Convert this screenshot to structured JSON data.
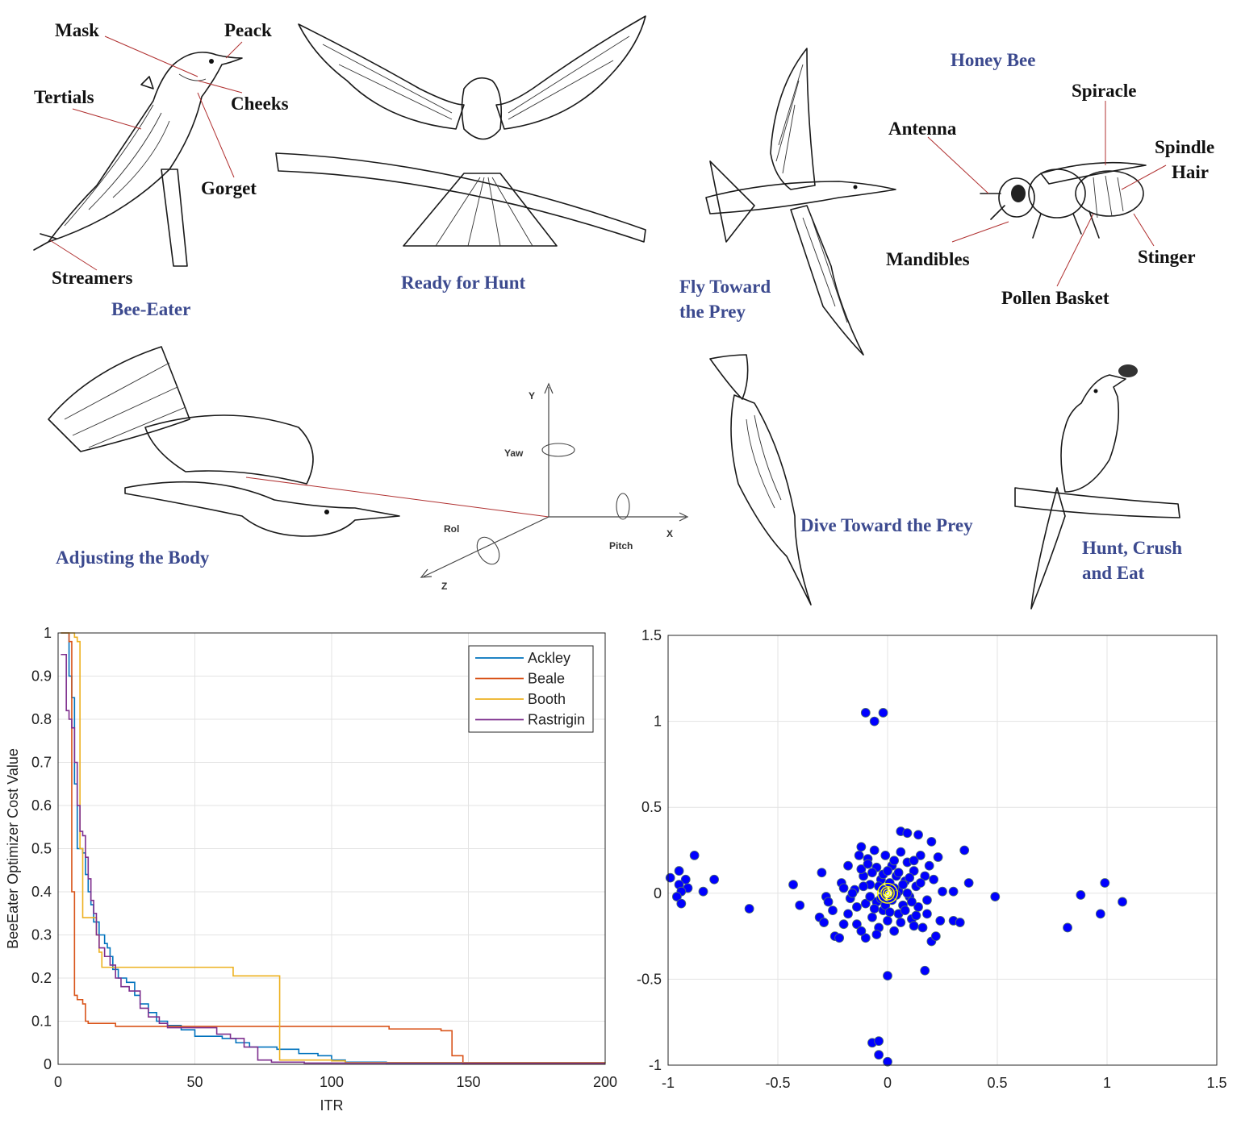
{
  "illustration": {
    "bee_eater_parts": {
      "mask": "Mask",
      "peack": "Peack",
      "tertials": "Tertials",
      "cheeks": "Cheeks",
      "gorget": "Gorget",
      "streamers": "Streamers"
    },
    "bee_parts": {
      "title": "Honey Bee",
      "spiracle": "Spiracle",
      "antenna": "Antenna",
      "spindle": "Spindle",
      "hair": "Hair",
      "mandibles": "Mandibles",
      "stinger": "Stinger",
      "pollen_basket": "Pollen Basket"
    },
    "stages": {
      "bee_eater": "Bee-Eater",
      "ready": "Ready for Hunt",
      "fly_1": "Fly Toward",
      "fly_2": "the Prey",
      "adjust": "Adjusting the Body",
      "dive": "Dive Toward the Prey",
      "hunt_1": "Hunt, Crush",
      "hunt_2": "and Eat"
    },
    "axes3d": {
      "y": "Y",
      "x": "X",
      "z": "Z",
      "yaw": "Yaw",
      "roll": "Rol",
      "pitch": "Pitch"
    },
    "colors": {
      "label_blue": "#3c4a8f",
      "leader_red": "#b03030"
    }
  },
  "chart_data": [
    {
      "type": "line",
      "xlabel": "ITR",
      "ylabel": "BeeEater Optimizer Cost Value",
      "xlim": [
        0,
        200
      ],
      "ylim": [
        0,
        1
      ],
      "xticks": [
        0,
        50,
        100,
        150,
        200
      ],
      "yticks": [
        0,
        0.1,
        0.2,
        0.3,
        0.4,
        0.5,
        0.6,
        0.7,
        0.8,
        0.9,
        1
      ],
      "grid": true,
      "legend_position": "top-right",
      "series": [
        {
          "name": "Ackley",
          "color": "#0072bd",
          "points": [
            [
              1,
              1
            ],
            [
              4,
              0.9
            ],
            [
              5,
              0.85
            ],
            [
              6,
              0.65
            ],
            [
              7,
              0.5
            ],
            [
              9,
              0.49
            ],
            [
              10,
              0.44
            ],
            [
              11,
              0.4
            ],
            [
              12,
              0.37
            ],
            [
              13,
              0.33
            ],
            [
              15,
              0.3
            ],
            [
              17,
              0.28
            ],
            [
              18,
              0.27
            ],
            [
              19,
              0.25
            ],
            [
              20,
              0.22
            ],
            [
              22,
              0.2
            ],
            [
              25,
              0.19
            ],
            [
              28,
              0.16
            ],
            [
              30,
              0.14
            ],
            [
              33,
              0.12
            ],
            [
              36,
              0.1
            ],
            [
              40,
              0.09
            ],
            [
              45,
              0.08
            ],
            [
              50,
              0.065
            ],
            [
              60,
              0.06
            ],
            [
              65,
              0.05
            ],
            [
              70,
              0.04
            ],
            [
              80,
              0.035
            ],
            [
              88,
              0.025
            ],
            [
              95,
              0.02
            ],
            [
              100,
              0.01
            ],
            [
              105,
              0.005
            ],
            [
              120,
              0.003
            ],
            [
              150,
              0.002
            ],
            [
              200,
              0.002
            ]
          ]
        },
        {
          "name": "Beale",
          "color": "#d95319",
          "points": [
            [
              1,
              1
            ],
            [
              4,
              0.98
            ],
            [
              5,
              0.4
            ],
            [
              6,
              0.16
            ],
            [
              7,
              0.15
            ],
            [
              9,
              0.14
            ],
            [
              10,
              0.1
            ],
            [
              11,
              0.095
            ],
            [
              20,
              0.095
            ],
            [
              21,
              0.088
            ],
            [
              120,
              0.088
            ],
            [
              121,
              0.082
            ],
            [
              140,
              0.078
            ],
            [
              143,
              0.078
            ],
            [
              144,
              0.02
            ],
            [
              147,
              0.02
            ],
            [
              148,
              0.002
            ],
            [
              200,
              0.002
            ]
          ]
        },
        {
          "name": "Booth",
          "color": "#edb120",
          "points": [
            [
              1,
              1
            ],
            [
              5,
              1
            ],
            [
              6,
              0.99
            ],
            [
              7,
              0.98
            ],
            [
              8,
              0.5
            ],
            [
              9,
              0.34
            ],
            [
              13,
              0.34
            ],
            [
              14,
              0.3
            ],
            [
              15,
              0.26
            ],
            [
              16,
              0.225
            ],
            [
              63,
              0.225
            ],
            [
              64,
              0.205
            ],
            [
              80,
              0.205
            ],
            [
              81,
              0.01
            ],
            [
              100,
              0.008
            ],
            [
              105,
              0.004
            ],
            [
              200,
              0.003
            ]
          ]
        },
        {
          "name": "Rastrigin",
          "color": "#7e2f8e",
          "points": [
            [
              1,
              0.95
            ],
            [
              3,
              0.82
            ],
            [
              4,
              0.8
            ],
            [
              5,
              0.78
            ],
            [
              6,
              0.7
            ],
            [
              7,
              0.6
            ],
            [
              8,
              0.54
            ],
            [
              9,
              0.53
            ],
            [
              10,
              0.48
            ],
            [
              11,
              0.43
            ],
            [
              12,
              0.38
            ],
            [
              13,
              0.35
            ],
            [
              14,
              0.3
            ],
            [
              15,
              0.27
            ],
            [
              17,
              0.25
            ],
            [
              19,
              0.23
            ],
            [
              21,
              0.2
            ],
            [
              23,
              0.18
            ],
            [
              26,
              0.17
            ],
            [
              30,
              0.13
            ],
            [
              33,
              0.11
            ],
            [
              37,
              0.095
            ],
            [
              40,
              0.085
            ],
            [
              50,
              0.085
            ],
            [
              57,
              0.085
            ],
            [
              58,
              0.07
            ],
            [
              63,
              0.06
            ],
            [
              68,
              0.04
            ],
            [
              72,
              0.04
            ],
            [
              73,
              0.01
            ],
            [
              78,
              0.005
            ],
            [
              90,
              0.003
            ],
            [
              200,
              0.003
            ]
          ]
        }
      ]
    },
    {
      "type": "scatter",
      "xlim": [
        -1,
        1.5
      ],
      "ylim": [
        -1,
        1.5
      ],
      "xticks": [
        -1,
        -0.5,
        0,
        0.5,
        1,
        1.5
      ],
      "yticks": [
        -1,
        -0.5,
        0,
        0.5,
        1,
        1.5
      ],
      "grid": true,
      "marker_color": "#0000ff",
      "marker_edge": "#4f6f70",
      "ring_color": "#ffff00",
      "rings": [
        0.01,
        0.02,
        0.03,
        0.045
      ],
      "points": [
        [
          -0.1,
          1.05
        ],
        [
          -0.02,
          1.05
        ],
        [
          -0.06,
          1.0
        ],
        [
          -0.99,
          0.09
        ],
        [
          -0.95,
          0.13
        ],
        [
          -0.92,
          0.08
        ],
        [
          -0.88,
          0.22
        ],
        [
          -0.95,
          0.05
        ],
        [
          -0.91,
          0.03
        ],
        [
          -0.94,
          0.01
        ],
        [
          -0.96,
          -0.02
        ],
        [
          -0.94,
          -0.06
        ],
        [
          -0.84,
          0.01
        ],
        [
          -0.79,
          0.08
        ],
        [
          -0.63,
          -0.09
        ],
        [
          -0.43,
          0.05
        ],
        [
          -0.4,
          -0.07
        ],
        [
          -0.3,
          0.12
        ],
        [
          -0.28,
          -0.02
        ],
        [
          -0.31,
          -0.14
        ],
        [
          -0.29,
          -0.17
        ],
        [
          -0.27,
          -0.05
        ],
        [
          -0.25,
          -0.1
        ],
        [
          -0.24,
          -0.25
        ],
        [
          -0.22,
          -0.26
        ],
        [
          -0.21,
          0.06
        ],
        [
          -0.2,
          -0.18
        ],
        [
          -0.18,
          0.16
        ],
        [
          -0.17,
          -0.03
        ],
        [
          -0.15,
          0.02
        ],
        [
          -0.13,
          0.22
        ],
        [
          -0.12,
          0.27
        ],
        [
          -0.11,
          0.1
        ],
        [
          -0.1,
          -0.06
        ],
        [
          -0.1,
          -0.26
        ],
        [
          -0.09,
          0.2
        ],
        [
          -0.08,
          0.05
        ],
        [
          -0.07,
          -0.14
        ],
        [
          -0.06,
          0.25
        ],
        [
          -0.05,
          0.15
        ],
        [
          -0.05,
          -0.05
        ],
        [
          -0.04,
          -0.2
        ],
        [
          -0.03,
          0.08
        ],
        [
          -0.02,
          -0.1
        ],
        [
          -0.02,
          0.02
        ],
        [
          -0.01,
          0.22
        ],
        [
          0.0,
          -0.16
        ],
        [
          0.01,
          0.06
        ],
        [
          0.02,
          -0.04
        ],
        [
          0.02,
          0.16
        ],
        [
          0.03,
          -0.22
        ],
        [
          0.04,
          0.1
        ],
        [
          0.05,
          0.01
        ],
        [
          0.05,
          -0.12
        ],
        [
          0.06,
          0.24
        ],
        [
          0.07,
          -0.07
        ],
        [
          0.08,
          0.07
        ],
        [
          0.09,
          0.18
        ],
        [
          0.1,
          -0.02
        ],
        [
          0.11,
          -0.15
        ],
        [
          0.12,
          0.13
        ],
        [
          0.13,
          0.04
        ],
        [
          0.14,
          -0.08
        ],
        [
          0.15,
          0.22
        ],
        [
          0.16,
          -0.2
        ],
        [
          0.17,
          0.1
        ],
        [
          0.18,
          -0.04
        ],
        [
          0.19,
          0.16
        ],
        [
          0.2,
          -0.28
        ],
        [
          0.21,
          0.08
        ],
        [
          0.22,
          -0.25
        ],
        [
          0.23,
          0.21
        ],
        [
          0.24,
          -0.16
        ],
        [
          0.25,
          0.01
        ],
        [
          0.06,
          0.36
        ],
        [
          0.09,
          0.35
        ],
        [
          0.14,
          0.34
        ],
        [
          0.2,
          0.3
        ],
        [
          0.17,
          -0.45
        ],
        [
          0.0,
          -0.48
        ],
        [
          0.3,
          -0.16
        ],
        [
          0.3,
          0.01
        ],
        [
          0.33,
          -0.17
        ],
        [
          0.35,
          0.25
        ],
        [
          0.37,
          0.06
        ],
        [
          0.49,
          -0.02
        ],
        [
          -0.07,
          -0.87
        ],
        [
          -0.04,
          -0.86
        ],
        [
          -0.04,
          -0.94
        ],
        [
          0.0,
          -0.98
        ],
        [
          0.82,
          -0.2
        ],
        [
          0.88,
          -0.01
        ],
        [
          0.97,
          -0.12
        ],
        [
          0.99,
          0.06
        ],
        [
          1.07,
          -0.05
        ],
        [
          -0.16,
          0.0
        ],
        [
          -0.14,
          -0.08
        ],
        [
          -0.12,
          0.14
        ],
        [
          -0.11,
          0.04
        ],
        [
          -0.08,
          -0.02
        ],
        [
          -0.07,
          0.12
        ],
        [
          -0.06,
          -0.09
        ],
        [
          -0.04,
          0.04
        ],
        [
          -0.03,
          -0.03
        ],
        [
          -0.02,
          0.11
        ],
        [
          -0.01,
          -0.07
        ],
        [
          0.0,
          0.13
        ],
        [
          0.01,
          -0.11
        ],
        [
          0.03,
          0.03
        ],
        [
          0.04,
          -0.01
        ],
        [
          0.05,
          0.12
        ],
        [
          0.06,
          -0.17
        ],
        [
          0.07,
          0.05
        ],
        [
          0.08,
          -0.1
        ],
        [
          0.09,
          0.0
        ],
        [
          0.1,
          0.09
        ],
        [
          0.11,
          -0.05
        ],
        [
          0.12,
          0.19
        ],
        [
          0.13,
          -0.13
        ],
        [
          -0.14,
          -0.18
        ],
        [
          -0.18,
          -0.12
        ],
        [
          -0.2,
          0.03
        ],
        [
          -0.12,
          -0.22
        ],
        [
          0.15,
          0.06
        ],
        [
          0.18,
          -0.12
        ],
        [
          0.12,
          -0.19
        ],
        [
          -0.05,
          -0.24
        ],
        [
          0.03,
          0.19
        ],
        [
          -0.09,
          0.17
        ]
      ]
    }
  ]
}
